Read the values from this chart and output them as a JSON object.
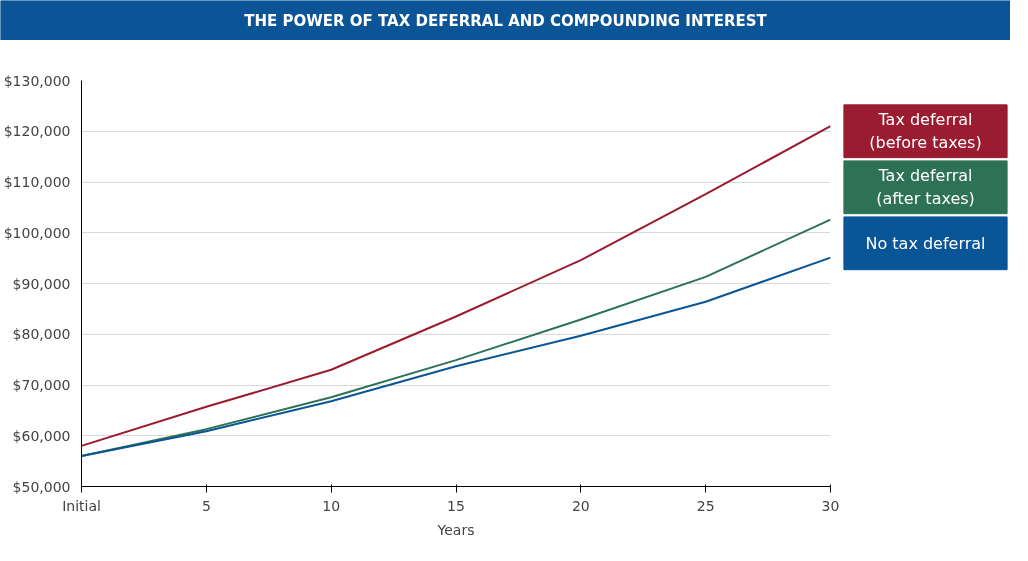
{
  "chart_data": {
    "type": "line",
    "title": "THE POWER OF TAX DEFERRAL AND COMPOUNDING INTEREST",
    "xlabel": "Years",
    "x": [
      0,
      5,
      10,
      15,
      20,
      25,
      30
    ],
    "series": [
      {
        "name": "Tax deferral (before taxes)",
        "color": "#9b1b30",
        "values": [
          58000,
          65700,
          73000,
          83500,
          94600,
          107600,
          121000
        ]
      },
      {
        "name": "Tax deferral (after taxes)",
        "color": "#2e7256",
        "values": [
          56000,
          61300,
          67600,
          74900,
          82900,
          91300,
          102600
        ]
      },
      {
        "name": "No tax deferral",
        "color": "#0a5596",
        "values": [
          56000,
          60900,
          66800,
          73700,
          79700,
          86400,
          95100
        ]
      }
    ],
    "xlim": [
      0,
      30
    ],
    "xticks": [
      {
        "value": 0,
        "label": "Initial"
      },
      5,
      10,
      15,
      20,
      25,
      30
    ],
    "ylim": [
      50000,
      130000
    ],
    "yticks": [
      {
        "value": 50000,
        "label": "$50,000"
      },
      {
        "value": 60000,
        "label": "$60,000"
      },
      {
        "value": 70000,
        "label": "$70,000"
      },
      {
        "value": 80000,
        "label": "$80,000"
      },
      {
        "value": 90000,
        "label": "$90,000"
      },
      {
        "value": 100000,
        "label": "$100,000"
      },
      {
        "value": 110000,
        "label": "$110,000"
      },
      {
        "value": 120000,
        "label": "$120,000"
      },
      {
        "value": 130000,
        "label": "$130,000"
      }
    ],
    "grid": "y",
    "legend": "right",
    "marker": "none",
    "line_style": "solid"
  }
}
